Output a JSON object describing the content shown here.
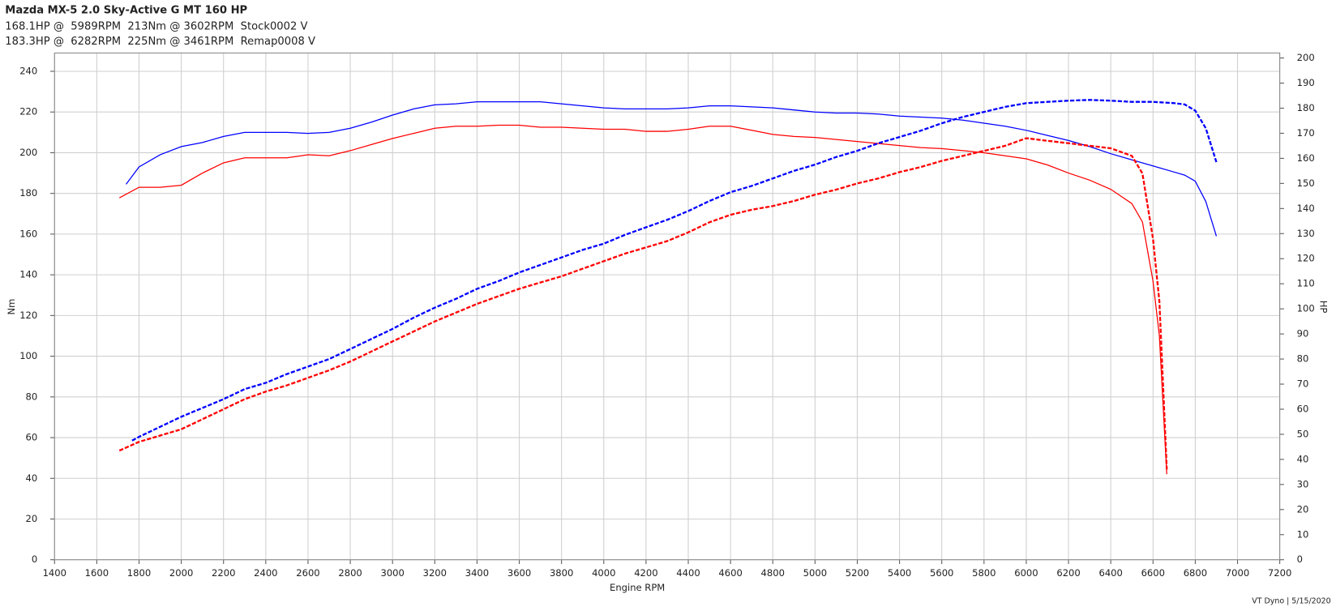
{
  "chart_data": {
    "type": "line",
    "title": "Mazda MX-5 2.0 Sky-Active G MT 160 HP",
    "subtitles": [
      {
        "text": "168.1HP @  5989RPM  213Nm @ 3602RPM  Stock0002 V",
        "color": "#ff0000"
      },
      {
        "text": "183.3HP @  6282RPM  225Nm @ 3461RPM  Remap0008 V",
        "color": "#0000ff"
      }
    ],
    "x_label": "Engine RPM",
    "y_label": "Nm",
    "y2_label": "HP",
    "footer": "VT Dyno | 5/15/2020",
    "xlim": [
      1400,
      7200
    ],
    "xticks": [
      1400,
      1600,
      1800,
      2000,
      2200,
      2400,
      2600,
      2800,
      3000,
      3200,
      3400,
      3600,
      3800,
      4000,
      4200,
      4400,
      4600,
      4800,
      5000,
      5200,
      5400,
      5600,
      5800,
      6000,
      6200,
      6400,
      6600,
      6800,
      7000,
      7200
    ],
    "ylim": [
      0,
      249
    ],
    "yticks": [
      0,
      20,
      40,
      60,
      80,
      100,
      120,
      140,
      160,
      180,
      200,
      220,
      240
    ],
    "y2lim": [
      0,
      202
    ],
    "y2ticks": [
      0,
      10,
      20,
      30,
      40,
      50,
      60,
      70,
      80,
      90,
      100,
      110,
      120,
      130,
      140,
      150,
      160,
      170,
      180,
      190,
      200
    ],
    "grid": true,
    "series": [
      {
        "color": "#ff0000",
        "linestyle": "solid",
        "x": [
          1707,
          1800,
          1900,
          2000,
          2100,
          2200,
          2300,
          2400,
          2500,
          2600,
          2700,
          2800,
          2900,
          3000,
          3100,
          3200,
          3300,
          3400,
          3500,
          3600,
          3700,
          3800,
          3900,
          4000,
          4100,
          4200,
          4300,
          4400,
          4500,
          4600,
          4700,
          4800,
          4900,
          5000,
          5100,
          5200,
          5300,
          5400,
          5500,
          5600,
          5700,
          5800,
          5900,
          6000,
          6100,
          6200,
          6300,
          6400,
          6500,
          6550,
          6600,
          6630,
          6665
        ],
        "values": [
          177.8,
          183,
          183,
          184,
          190,
          195,
          197.5,
          197.5,
          197.5,
          199,
          198.5,
          201,
          204,
          207,
          209.5,
          212,
          213,
          213,
          213.5,
          213.5,
          212.5,
          212.5,
          212,
          211.5,
          211.5,
          210.5,
          210.5,
          211.5,
          213,
          213,
          211,
          209,
          208,
          207.5,
          206.5,
          205.5,
          204.5,
          203.5,
          202.5,
          202,
          201,
          200,
          198.5,
          197,
          194,
          190,
          186.5,
          182,
          175,
          166,
          137,
          110,
          42
        ]
      },
      {
        "color": "#0000ff",
        "linestyle": "solid",
        "x": [
          1739,
          1800,
          1900,
          2000,
          2100,
          2200,
          2300,
          2400,
          2500,
          2600,
          2700,
          2800,
          2900,
          3000,
          3100,
          3200,
          3300,
          3400,
          3500,
          3600,
          3700,
          3800,
          3900,
          4000,
          4100,
          4200,
          4300,
          4400,
          4500,
          4600,
          4700,
          4800,
          4900,
          5000,
          5100,
          5200,
          5300,
          5400,
          5500,
          5600,
          5700,
          5800,
          5900,
          6000,
          6100,
          6200,
          6300,
          6400,
          6500,
          6600,
          6700,
          6750,
          6800,
          6850,
          6900
        ],
        "values": [
          184.5,
          193,
          199,
          203,
          205,
          208,
          210,
          210,
          210,
          209.5,
          210,
          212,
          215,
          218.5,
          221.5,
          223.5,
          224,
          225,
          225,
          225,
          225,
          224,
          223,
          222,
          221.5,
          221.5,
          221.5,
          222,
          223,
          223,
          222.5,
          222,
          221,
          220,
          219.5,
          219.5,
          219,
          218,
          217.5,
          217,
          216,
          214.5,
          213,
          211,
          208.5,
          206,
          203,
          199.5,
          196.5,
          193.5,
          190.5,
          189,
          186,
          176,
          159
        ]
      },
      {
        "color": "#ff0000",
        "linestyle": "dashed",
        "axis": "y2",
        "x": [
          1707,
          1800,
          1900,
          2000,
          2100,
          2200,
          2300,
          2400,
          2500,
          2600,
          2700,
          2800,
          2900,
          3000,
          3100,
          3200,
          3300,
          3400,
          3500,
          3600,
          3700,
          3800,
          3900,
          4000,
          4100,
          4200,
          4300,
          4400,
          4500,
          4600,
          4700,
          4800,
          4900,
          5000,
          5100,
          5200,
          5300,
          5400,
          5500,
          5600,
          5700,
          5800,
          5900,
          6000,
          6100,
          6200,
          6300,
          6400,
          6500,
          6550,
          6600,
          6630,
          6665
        ],
        "values": [
          43.5,
          47,
          49.5,
          52,
          56,
          60,
          64,
          67,
          69.5,
          72.5,
          75.5,
          79,
          83,
          87,
          91,
          95,
          98.5,
          102,
          105,
          108,
          110.5,
          113,
          116,
          119,
          122,
          124.5,
          127,
          130.5,
          134.5,
          137.5,
          139.5,
          141,
          143,
          145.5,
          147.5,
          150,
          152,
          154.5,
          156.5,
          159,
          161,
          163,
          165,
          168,
          167,
          166,
          165,
          164,
          161,
          154,
          128,
          103,
          36
        ]
      },
      {
        "color": "#0000ff",
        "linestyle": "dashed",
        "axis": "y2",
        "x": [
          1767,
          1800,
          1900,
          2000,
          2100,
          2200,
          2300,
          2400,
          2500,
          2600,
          2700,
          2800,
          2900,
          3000,
          3100,
          3200,
          3300,
          3400,
          3500,
          3600,
          3700,
          3800,
          3900,
          4000,
          4100,
          4200,
          4300,
          4400,
          4500,
          4600,
          4700,
          4800,
          4900,
          5000,
          5100,
          5200,
          5300,
          5400,
          5500,
          5600,
          5700,
          5800,
          5900,
          6000,
          6100,
          6200,
          6300,
          6400,
          6500,
          6600,
          6700,
          6750,
          6800,
          6850,
          6900
        ],
        "values": [
          47.5,
          49,
          53,
          57,
          60.5,
          64,
          68,
          70.5,
          74,
          77,
          80,
          84,
          88,
          92,
          96.5,
          100.5,
          104,
          108,
          111,
          114.5,
          117.5,
          120.5,
          123.5,
          126,
          129.5,
          132.5,
          135.5,
          139,
          143,
          146.5,
          149,
          152,
          155,
          157.5,
          160.5,
          163,
          166,
          168.5,
          171,
          174,
          176.5,
          178.5,
          180.5,
          182,
          182.5,
          183,
          183.3,
          183,
          182.5,
          182.5,
          182,
          181.5,
          179,
          172,
          158.5
        ]
      }
    ]
  }
}
